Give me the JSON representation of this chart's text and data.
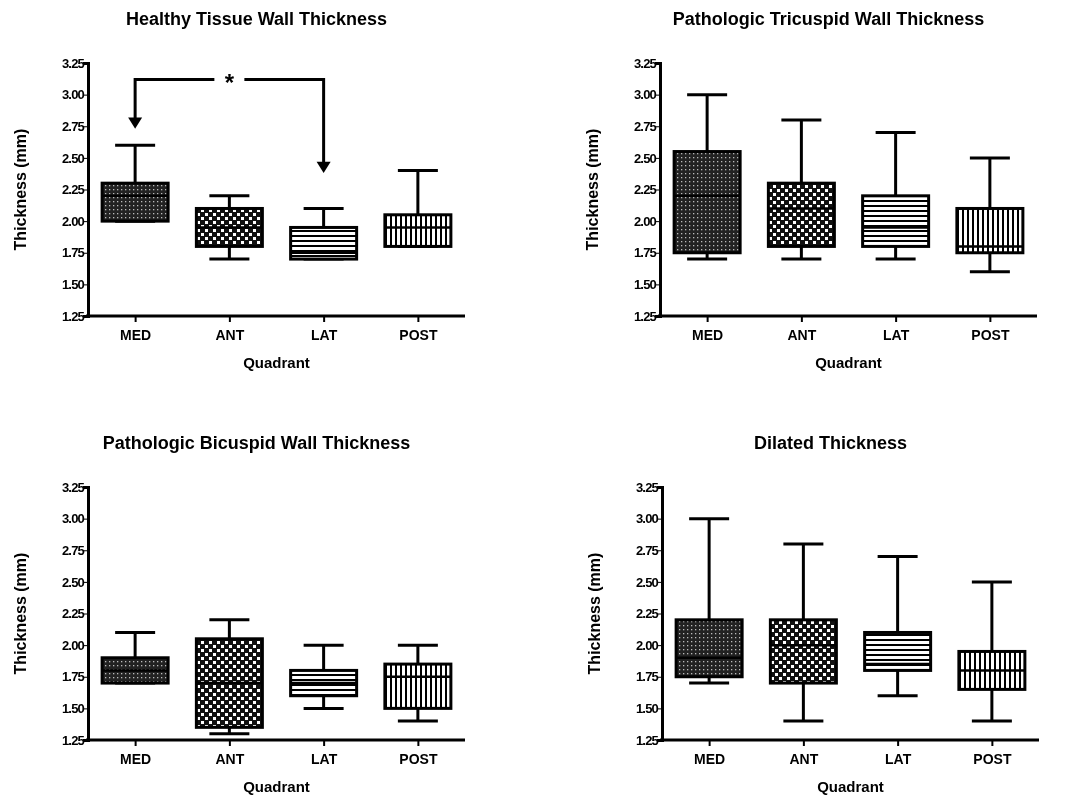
{
  "chart_data": [
    {
      "type": "box",
      "title": "Healthy Tissue Wall Thickness",
      "xlabel": "Quadrant",
      "ylabel": "Thickness (mm)",
      "color": "#000000",
      "categories": [
        "MED",
        "ANT",
        "LAT",
        "POST"
      ],
      "boxes": [
        {
          "low": 2.0,
          "q1": 2.0,
          "median": 2.2,
          "q3": 2.3,
          "high": 2.6
        },
        {
          "low": 1.7,
          "q1": 1.8,
          "median": 1.95,
          "q3": 2.1,
          "high": 2.2
        },
        {
          "low": 1.7,
          "q1": 1.7,
          "median": 1.75,
          "q3": 1.95,
          "high": 2.1
        },
        {
          "low": 1.8,
          "q1": 1.8,
          "median": 1.95,
          "q3": 2.05,
          "high": 2.4
        }
      ],
      "ylim": [
        1.25,
        3.25
      ],
      "yticks": [
        1.25,
        {
          "value": 1.5,
          "label": "1.50"
        },
        1.75,
        {
          "value": 2,
          "label": "2.00"
        },
        2.25,
        {
          "value": 2.5,
          "label": "2.50"
        },
        2.75,
        {
          "value": 3,
          "label": "3.00"
        },
        3.25
      ],
      "annotations": [
        "*"
      ]
    },
    {
      "type": "box",
      "title": "Pathologic Tricuspid Wall Thickness",
      "xlabel": "Quadrant",
      "ylabel": "Thickness (mm)",
      "color": "#000000",
      "categories": [
        "MED",
        "ANT",
        "LAT",
        "POST"
      ],
      "boxes": [
        {
          "low": 1.7,
          "q1": 1.75,
          "median": 2.2,
          "q3": 2.55,
          "high": 3.0
        },
        {
          "low": 1.7,
          "q1": 1.8,
          "median": 2.1,
          "q3": 2.3,
          "high": 2.8
        },
        {
          "low": 1.7,
          "q1": 1.8,
          "median": 1.95,
          "q3": 2.2,
          "high": 2.7
        },
        {
          "low": 1.6,
          "q1": 1.75,
          "median": 1.8,
          "q3": 2.1,
          "high": 2.5
        }
      ],
      "ylim": [
        1.25,
        3.25
      ],
      "yticks": [
        1.25,
        {
          "value": 1.5,
          "label": "1.50"
        },
        1.75,
        {
          "value": 2,
          "label": "2.00"
        },
        2.25,
        {
          "value": 2.5,
          "label": "2.50"
        },
        2.75,
        {
          "value": 3,
          "label": "3.00"
        },
        3.25
      ]
    },
    {
      "type": "box",
      "title": "Pathologic Bicuspid Wall Thickness",
      "xlabel": "Quadrant",
      "ylabel": "Thickness (mm)",
      "color": "#000000",
      "categories": [
        "MED",
        "ANT",
        "LAT",
        "POST"
      ],
      "boxes": [
        {
          "low": 1.7,
          "q1": 1.7,
          "median": 1.8,
          "q3": 1.9,
          "high": 2.1
        },
        {
          "low": 1.3,
          "q1": 1.35,
          "median": 1.7,
          "q3": 2.05,
          "high": 2.2
        },
        {
          "low": 1.5,
          "q1": 1.6,
          "median": 1.7,
          "q3": 1.8,
          "high": 2.0
        },
        {
          "low": 1.4,
          "q1": 1.5,
          "median": 1.75,
          "q3": 1.85,
          "high": 2.0
        }
      ],
      "ylim": [
        1.25,
        3.25
      ],
      "yticks": [
        1.25,
        {
          "value": 1.5,
          "label": "1.50"
        },
        1.75,
        {
          "value": 2,
          "label": "2.00"
        },
        2.25,
        {
          "value": 2.5,
          "label": "2.50"
        },
        2.75,
        {
          "value": 3,
          "label": "3.00"
        },
        3.25
      ]
    },
    {
      "type": "box",
      "title": "Dilated Thickness",
      "xlabel": "Quadrant",
      "ylabel": "Thickness (mm)",
      "color": "#000000",
      "categories": [
        "MED",
        "ANT",
        "LAT",
        "POST"
      ],
      "boxes": [
        {
          "low": 1.7,
          "q1": 1.75,
          "median": 1.9,
          "q3": 2.2,
          "high": 3.0
        },
        {
          "low": 1.4,
          "q1": 1.7,
          "median": 2.0,
          "q3": 2.2,
          "high": 2.8
        },
        {
          "low": 1.6,
          "q1": 1.8,
          "median": 1.85,
          "q3": 2.1,
          "high": 2.7
        },
        {
          "low": 1.4,
          "q1": 1.65,
          "median": 1.8,
          "q3": 1.95,
          "high": 2.5
        }
      ],
      "ylim": [
        1.25,
        3.25
      ],
      "yticks": [
        1.25,
        {
          "value": 1.5,
          "label": "1.50"
        },
        1.75,
        {
          "value": 2,
          "label": "2.00"
        },
        2.25,
        {
          "value": 2.5,
          "label": "2.50"
        },
        2.75,
        {
          "value": 3,
          "label": "3.00"
        },
        3.25
      ]
    }
  ]
}
